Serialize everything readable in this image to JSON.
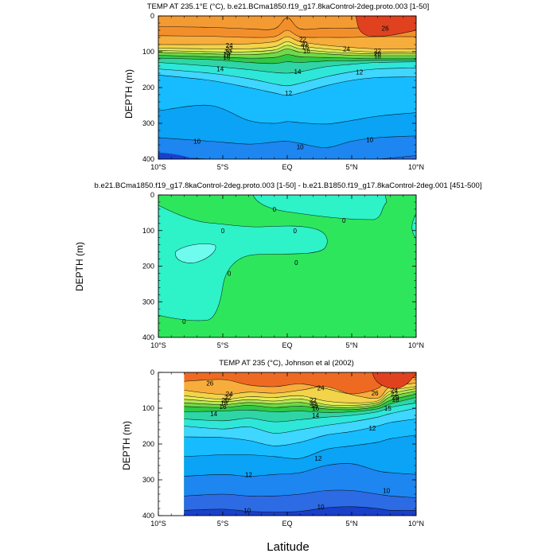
{
  "figure": {
    "xlabel": "Latitude",
    "colors": {
      "c30": "#e0421f",
      "c28": "#ee6a22",
      "c26": "#f38f2b",
      "c25": "#f39a33",
      "c24": "#f7ad3b",
      "c22": "#f2d34a",
      "c20": "#e3ec55",
      "c18": "#b5e652",
      "c16": "#6fd94a",
      "c15": "#30c846",
      "c14": "#2fd5a5",
      "c13": "#2ee7d9",
      "c12": "#3fd6ff",
      "c11": "#16bcff",
      "c10": "#0aa3f5",
      "c9": "#1d86f0",
      "c8": "#2c6be3",
      "c7": "#1a3fc9",
      "zero": "#2ee65c",
      "neg": "#2ef2c8",
      "neg2": "#6ffcef"
    }
  },
  "chart_data": [
    {
      "type": "contour",
      "title": "TEMP AT 235.1°E (°C), b.e21.BCma1850.f19_g17.8kaControl-2deg.proto.003 [1-50]",
      "xlabel": "",
      "ylabel": "DEPTH (m)",
      "xlim": [
        -10,
        10
      ],
      "ylim": [
        400,
        0
      ],
      "xticks": [
        -10,
        -5,
        0,
        5,
        10
      ],
      "xtick_labels": [
        "10°S",
        "5°S",
        "EQ",
        "5°N",
        "10°N"
      ],
      "yticks": [
        0,
        100,
        200,
        300,
        400
      ],
      "ytick_labels": [
        "0",
        "100",
        "200",
        "300",
        "400"
      ],
      "isotherms": [
        {
          "level": 26,
          "x": [
            -10,
            -6,
            -3,
            -1,
            0,
            1,
            3,
            5,
            7,
            10
          ],
          "y": [
            30,
            32,
            36,
            36,
            5,
            36,
            34,
            34,
            32,
            30
          ]
        },
        {
          "level": 25,
          "x": [
            -10,
            -6,
            -3,
            -1,
            0,
            1,
            3,
            5,
            7,
            10
          ],
          "y": [
            55,
            57,
            60,
            58,
            40,
            58,
            60,
            60,
            58,
            58
          ]
        },
        {
          "level": 24,
          "x": [
            -10,
            -6,
            -3,
            -1,
            0,
            1,
            3,
            5,
            7,
            10
          ],
          "y": [
            80,
            80,
            78,
            72,
            58,
            72,
            82,
            88,
            92,
            92
          ]
        },
        {
          "level": 22,
          "x": [
            -10,
            -6,
            -3,
            -1,
            0,
            1,
            3,
            5,
            7,
            10
          ],
          "y": [
            90,
            92,
            92,
            86,
            72,
            84,
            92,
            98,
            101,
            101
          ]
        },
        {
          "level": 20,
          "x": [
            -10,
            -6,
            -3,
            -1,
            0,
            1,
            3,
            5,
            7,
            10
          ],
          "y": [
            96,
            100,
            100,
            95,
            82,
            92,
            100,
            104,
            106,
            106
          ]
        },
        {
          "level": 18,
          "x": [
            -10,
            -6,
            -3,
            -1,
            0,
            1,
            3,
            5,
            7,
            10
          ],
          "y": [
            102,
            106,
            108,
            103,
            92,
            101,
            106,
            110,
            111,
            111
          ]
        },
        {
          "level": 16,
          "x": [
            -10,
            -6,
            -3,
            -1,
            0,
            1,
            3,
            5,
            7,
            10
          ],
          "y": [
            110,
            114,
            118,
            116,
            108,
            114,
            116,
            118,
            118,
            118
          ]
        },
        {
          "level": 15,
          "x": [
            -10,
            -6,
            -3,
            -1,
            0,
            1,
            3,
            5,
            7,
            10
          ],
          "y": [
            118,
            122,
            130,
            133,
            128,
            130,
            126,
            125,
            124,
            124
          ]
        },
        {
          "level": 14,
          "x": [
            -10,
            -6,
            -3,
            -1,
            0,
            1,
            3,
            5,
            7,
            10
          ],
          "y": [
            130,
            140,
            150,
            158,
            160,
            156,
            142,
            135,
            130,
            128
          ]
        },
        {
          "level": 13,
          "x": [
            -10,
            -6,
            -3,
            -1,
            0,
            1,
            3,
            5,
            7,
            10
          ],
          "y": [
            148,
            160,
            175,
            190,
            195,
            188,
            170,
            156,
            148,
            145
          ]
        },
        {
          "level": 12,
          "x": [
            -10,
            -6,
            -3,
            -1,
            0,
            1,
            3,
            5,
            7,
            10
          ],
          "y": [
            165,
            180,
            200,
            215,
            222,
            215,
            195,
            180,
            172,
            170
          ]
        },
        {
          "level": 11,
          "x": [
            -10,
            -6,
            -3,
            -1,
            0,
            1,
            3,
            5,
            7,
            10
          ],
          "y": [
            265,
            250,
            292,
            300,
            295,
            298,
            302,
            292,
            280,
            270
          ]
        },
        {
          "level": 10,
          "x": [
            -10,
            -6,
            -3,
            -1,
            0,
            1,
            3,
            5,
            7,
            10
          ],
          "y": [
            340,
            350,
            358,
            352,
            350,
            356,
            368,
            350,
            340,
            335
          ]
        },
        {
          "level": 9,
          "x": [
            -10,
            -6,
            -3,
            -1,
            0,
            1,
            3,
            5,
            7,
            10
          ],
          "y": [
            392,
            400,
            402,
            402,
            402,
            402,
            402,
            402,
            400,
            390
          ]
        }
      ],
      "contour_labels": [
        {
          "text": "24",
          "x": -4.5,
          "y": 82
        },
        {
          "text": "22",
          "x": -4.5,
          "y": 92
        },
        {
          "text": "20",
          "x": -4.6,
          "y": 100
        },
        {
          "text": "18",
          "x": -4.7,
          "y": 108
        },
        {
          "text": "16",
          "x": -4.7,
          "y": 116
        },
        {
          "text": "14",
          "x": -5.2,
          "y": 148
        },
        {
          "text": "22",
          "x": 1.2,
          "y": 66
        },
        {
          "text": "20",
          "x": 1.3,
          "y": 78
        },
        {
          "text": "18",
          "x": 1.4,
          "y": 86
        },
        {
          "text": "16",
          "x": 1.5,
          "y": 98
        },
        {
          "text": "14",
          "x": 0.8,
          "y": 156
        },
        {
          "text": "12",
          "x": 0.1,
          "y": 216
        },
        {
          "text": "24",
          "x": 4.6,
          "y": 92
        },
        {
          "text": "22",
          "x": 7.0,
          "y": 98
        },
        {
          "text": "20",
          "x": 7.0,
          "y": 105
        },
        {
          "text": "18",
          "x": 7.0,
          "y": 112
        },
        {
          "text": "26",
          "x": 7.6,
          "y": 34
        },
        {
          "text": "12",
          "x": 5.6,
          "y": 157
        },
        {
          "text": "10",
          "x": -7.0,
          "y": 350
        },
        {
          "text": "10",
          "x": 1.0,
          "y": 365
        },
        {
          "text": "10",
          "x": 6.4,
          "y": 345
        }
      ]
    },
    {
      "type": "contour",
      "title": "b.e21.BCma1850.f19_g17.8kaControl-2deg.proto.003 [1-50] - b.e21.B1850.f19_g17.8kaControl-2deg.001 [451-500]",
      "xlabel": "",
      "ylabel": "DEPTH (m)",
      "xlim": [
        -10,
        10
      ],
      "ylim": [
        400,
        0
      ],
      "xticks": [
        -10,
        -5,
        0,
        5,
        10
      ],
      "xtick_labels": [
        "10°S",
        "5°S",
        "EQ",
        "5°N",
        "10°N"
      ],
      "yticks": [
        0,
        100,
        200,
        300,
        400
      ],
      "ytick_labels": [
        "0",
        "100",
        "200",
        "300",
        "400"
      ],
      "contour_labels": [
        {
          "text": "0",
          "x": -1.0,
          "y": 40
        },
        {
          "text": "0",
          "x": 4.4,
          "y": 72
        },
        {
          "text": "0",
          "x": -5.0,
          "y": 100
        },
        {
          "text": "0",
          "x": 0.6,
          "y": 100
        },
        {
          "text": "0",
          "x": 0.7,
          "y": 190
        },
        {
          "text": "0",
          "x": -4.5,
          "y": 220
        },
        {
          "text": "0",
          "x": -8.0,
          "y": 355
        }
      ]
    },
    {
      "type": "contour",
      "title": "TEMP AT 235 (°C), Johnson et al (2002)",
      "xlabel": "",
      "ylabel": "DEPTH (m)",
      "xlim": [
        -10,
        10
      ],
      "ylim": [
        400,
        0
      ],
      "data_start_x": -8,
      "xticks": [
        -10,
        -5,
        0,
        5,
        10
      ],
      "xtick_labels": [
        "10°S",
        "5°S",
        "EQ",
        "5°N",
        "10°N"
      ],
      "yticks": [
        0,
        100,
        200,
        300,
        400
      ],
      "ytick_labels": [
        "0",
        "100",
        "200",
        "300",
        "400"
      ],
      "isotherms": [
        {
          "level": 25,
          "x": [
            -8,
            -5,
            -3,
            -1,
            1,
            3,
            5,
            7,
            8,
            10
          ],
          "y": [
            25,
            20,
            35,
            40,
            32,
            45,
            60,
            45,
            15,
            15
          ]
        },
        {
          "level": 24,
          "x": [
            -8,
            -5,
            -3,
            -1,
            1,
            3,
            5,
            7,
            8,
            10
          ],
          "y": [
            50,
            62,
            55,
            58,
            50,
            40,
            62,
            72,
            40,
            30
          ]
        },
        {
          "level": 22,
          "x": [
            -8,
            -5,
            -3,
            -1,
            1,
            3,
            5,
            7,
            8,
            10
          ],
          "y": [
            65,
            75,
            68,
            70,
            65,
            80,
            85,
            80,
            52,
            40
          ]
        },
        {
          "level": 20,
          "x": [
            -8,
            -5,
            -3,
            -1,
            1,
            3,
            5,
            7,
            8,
            10
          ],
          "y": [
            75,
            82,
            76,
            80,
            74,
            90,
            92,
            85,
            60,
            45
          ]
        },
        {
          "level": 18,
          "x": [
            -8,
            -5,
            -3,
            -1,
            1,
            3,
            5,
            7,
            8,
            10
          ],
          "y": [
            85,
            90,
            84,
            88,
            84,
            96,
            98,
            90,
            68,
            52
          ]
        },
        {
          "level": 16,
          "x": [
            -8,
            -5,
            -3,
            -1,
            1,
            3,
            5,
            7,
            8,
            10
          ],
          "y": [
            95,
            98,
            92,
            98,
            94,
            102,
            104,
            95,
            78,
            60
          ]
        },
        {
          "level": 15,
          "x": [
            -8,
            -5,
            -3,
            -1,
            1,
            3,
            5,
            7,
            8,
            10
          ],
          "y": [
            110,
            108,
            105,
            110,
            108,
            112,
            110,
            102,
            88,
            70
          ]
        },
        {
          "level": 14,
          "x": [
            -8,
            -5,
            -3,
            -1,
            1,
            3,
            5,
            7,
            8,
            10
          ],
          "y": [
            130,
            135,
            128,
            138,
            132,
            125,
            120,
            110,
            98,
            85
          ]
        },
        {
          "level": 13,
          "x": [
            -8,
            -5,
            -3,
            -1,
            1,
            3,
            5,
            7,
            8,
            10
          ],
          "y": [
            150,
            158,
            152,
            170,
            160,
            148,
            138,
            125,
            115,
            100
          ]
        },
        {
          "level": 12,
          "x": [
            -8,
            -5,
            -3,
            -1,
            1,
            3,
            5,
            7,
            8,
            10
          ],
          "y": [
            180,
            182,
            190,
            205,
            195,
            175,
            165,
            150,
            140,
            130
          ]
        },
        {
          "level": 11,
          "x": [
            -8,
            -5,
            -3,
            -1,
            1,
            3,
            5,
            7,
            8,
            10
          ],
          "y": [
            235,
            230,
            230,
            235,
            240,
            215,
            205,
            195,
            185,
            175
          ]
        },
        {
          "level": 10,
          "x": [
            -8,
            -5,
            -3,
            -1,
            1,
            3,
            5,
            7,
            8,
            10
          ],
          "y": [
            290,
            285,
            290,
            285,
            280,
            260,
            255,
            275,
            280,
            285
          ]
        },
        {
          "level": 9,
          "x": [
            -8,
            -5,
            -3,
            -1,
            1,
            3,
            5,
            7,
            8,
            10
          ],
          "y": [
            345,
            340,
            345,
            345,
            340,
            330,
            330,
            340,
            345,
            350
          ]
        },
        {
          "level": 8,
          "x": [
            -8,
            -5,
            -3,
            -1,
            1,
            3,
            5,
            7,
            8,
            10
          ],
          "y": [
            385,
            382,
            388,
            390,
            388,
            378,
            375,
            380,
            385,
            385
          ]
        }
      ],
      "contour_labels": [
        {
          "text": "26",
          "x": -6.0,
          "y": 30
        },
        {
          "text": "24",
          "x": -4.5,
          "y": 60
        },
        {
          "text": "22",
          "x": -4.6,
          "y": 70
        },
        {
          "text": "20",
          "x": -4.8,
          "y": 78
        },
        {
          "text": "18",
          "x": -4.9,
          "y": 86
        },
        {
          "text": "16",
          "x": -5.0,
          "y": 95
        },
        {
          "text": "14",
          "x": -5.7,
          "y": 115
        },
        {
          "text": "24",
          "x": 2.6,
          "y": 43
        },
        {
          "text": "22",
          "x": 2.0,
          "y": 78
        },
        {
          "text": "20",
          "x": 2.0,
          "y": 86
        },
        {
          "text": "18",
          "x": 2.1,
          "y": 93
        },
        {
          "text": "16",
          "x": 2.2,
          "y": 100
        },
        {
          "text": "14",
          "x": 2.2,
          "y": 120
        },
        {
          "text": "26",
          "x": 6.8,
          "y": 58
        },
        {
          "text": "24",
          "x": 8.3,
          "y": 50
        },
        {
          "text": "22",
          "x": 8.3,
          "y": 60
        },
        {
          "text": "20",
          "x": 8.4,
          "y": 70
        },
        {
          "text": "18",
          "x": 8.4,
          "y": 76
        },
        {
          "text": "15",
          "x": 7.8,
          "y": 100
        },
        {
          "text": "12",
          "x": 6.6,
          "y": 155
        },
        {
          "text": "12",
          "x": 2.4,
          "y": 240
        },
        {
          "text": "12",
          "x": -3.0,
          "y": 285
        },
        {
          "text": "10",
          "x": 7.7,
          "y": 330
        },
        {
          "text": "10",
          "x": 2.6,
          "y": 375
        },
        {
          "text": "10",
          "x": -3.1,
          "y": 385
        }
      ]
    }
  ]
}
